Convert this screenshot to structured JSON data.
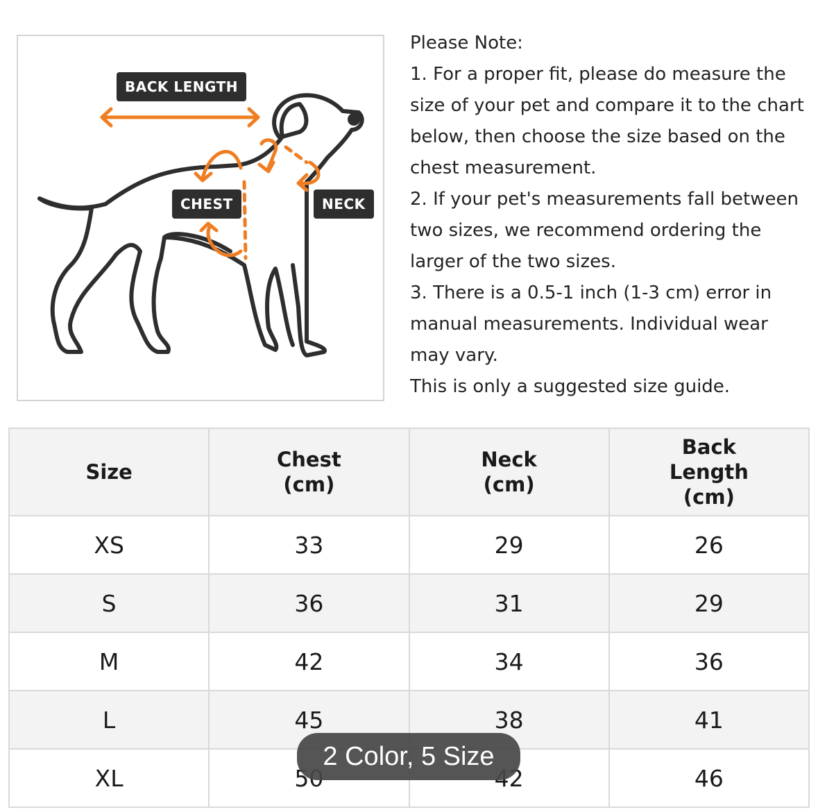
{
  "diagram": {
    "labels": {
      "back_length": "BACK LENGTH",
      "chest": "CHEST",
      "neck": "NECK"
    },
    "accent_color": "#ef7d22"
  },
  "notes": [
    "Please Note:",
    "1. For a proper fit, please do measure the",
    "size of your pet and compare it to the chart",
    "below, then choose the size based on the",
    "chest measurement.",
    "2. If your pet's measurements fall between",
    "two sizes, we recommend ordering the",
    "larger of the two sizes.",
    "3. There is a 0.5-1 inch (1-3 cm) error in",
    "manual measurements. Individual wear",
    "may vary.",
    "This is only a suggested size guide."
  ],
  "table": {
    "headers": [
      [
        "Size"
      ],
      [
        "Chest",
        "(cm)"
      ],
      [
        "Neck",
        "(cm)"
      ],
      [
        "Back",
        "Length",
        "(cm)"
      ]
    ],
    "rows": [
      [
        "XS",
        "33",
        "29",
        "26"
      ],
      [
        "S",
        "36",
        "31",
        "29"
      ],
      [
        "M",
        "42",
        "34",
        "36"
      ],
      [
        "L",
        "45",
        "38",
        "41"
      ],
      [
        "XL",
        "50",
        "42",
        "46"
      ]
    ]
  },
  "badge": "2 Color, 5 Size"
}
